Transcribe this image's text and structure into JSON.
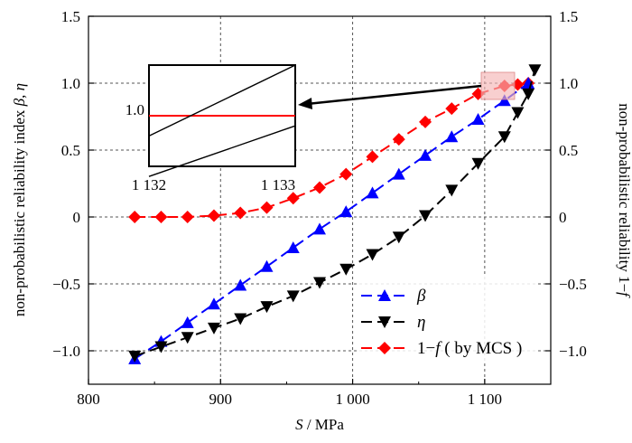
{
  "chart_data": {
    "type": "line",
    "title": "",
    "xlabel": {
      "var": "S",
      "unit": " / MPa"
    },
    "ylabel_left": {
      "prefix": "non-probabilistic reliability index ",
      "sym1": "β",
      "sep": ", ",
      "sym2": "η"
    },
    "ylabel_right": {
      "prefix": "non-probabilistic reliability  ",
      "expr": "1−",
      "sym": "f"
    },
    "xlim": [
      800,
      1150
    ],
    "ylim": [
      -1.25,
      1.5
    ],
    "x_ticks": [
      800,
      900,
      1000,
      1100
    ],
    "x_tick_labels": [
      "800",
      "900",
      "1 000",
      "1 100"
    ],
    "y_ticks": [
      -1.0,
      -0.5,
      0,
      0.5,
      1.0,
      1.5
    ],
    "y_tick_labels": [
      "−1.0",
      "−0.5",
      "0",
      "0.5",
      "1.0",
      "1.5"
    ],
    "grid": true,
    "series": [
      {
        "name": "β",
        "color": "#0000ff",
        "marker": "triangle-up",
        "dash": true,
        "x": [
          835,
          855,
          875,
          895,
          915,
          935,
          955,
          975,
          995,
          1015,
          1035,
          1055,
          1075,
          1095,
          1115,
          1133
        ],
        "y": [
          -1.06,
          -0.93,
          -0.79,
          -0.65,
          -0.51,
          -0.37,
          -0.23,
          -0.09,
          0.04,
          0.18,
          0.32,
          0.46,
          0.6,
          0.73,
          0.87,
          1.0
        ]
      },
      {
        "name": "η",
        "color": "#000000",
        "marker": "triangle-down",
        "dash": true,
        "x": [
          835,
          855,
          875,
          895,
          915,
          935,
          955,
          975,
          995,
          1015,
          1035,
          1055,
          1075,
          1095,
          1115,
          1125,
          1133,
          1138
        ],
        "y": [
          -1.04,
          -0.97,
          -0.9,
          -0.83,
          -0.76,
          -0.67,
          -0.59,
          -0.49,
          -0.39,
          -0.28,
          -0.15,
          0.01,
          0.2,
          0.4,
          0.6,
          0.78,
          0.92,
          1.1
        ]
      },
      {
        "name": "1−f (by MCS)",
        "color": "#ff0000",
        "marker": "diamond",
        "dash": true,
        "x": [
          835,
          855,
          875,
          895,
          915,
          935,
          955,
          975,
          995,
          1015,
          1035,
          1055,
          1075,
          1095,
          1115,
          1125,
          1133
        ],
        "y": [
          0.0,
          0.0,
          0.0,
          0.01,
          0.03,
          0.07,
          0.14,
          0.22,
          0.32,
          0.45,
          0.58,
          0.71,
          0.81,
          0.92,
          0.98,
          0.99,
          1.0
        ]
      }
    ],
    "legend": {
      "position": "bottom-right",
      "entries": [
        {
          "sym": "β",
          "suffix": ""
        },
        {
          "sym": "η",
          "suffix": ""
        },
        {
          "prefix": "1−",
          "sym": "f",
          "suffix": " ( by MCS )"
        }
      ]
    },
    "inset": {
      "xlim": [
        1132,
        1133
      ],
      "ylim": [
        0.9999,
        1.0001
      ],
      "x_tick_labels": [
        "1 132",
        "1 133"
      ],
      "y_tick_label": "1.0",
      "lines": [
        {
          "name": "1−f",
          "color": "#ff0000",
          "x": [
            1132,
            1133
          ],
          "y": [
            1.0,
            1.0
          ]
        },
        {
          "name": "β",
          "color": "#000000",
          "x": [
            1132,
            1133
          ],
          "y": [
            0.99996,
            1.0001
          ]
        },
        {
          "name": "η",
          "color": "#000000",
          "x": [
            1132,
            1133
          ],
          "y": [
            0.99988,
            0.99998
          ]
        }
      ]
    }
  }
}
